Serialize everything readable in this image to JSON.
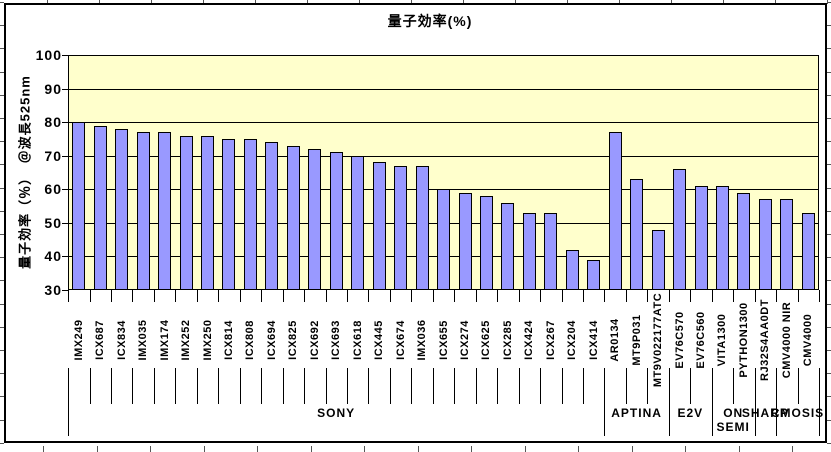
{
  "chart": {
    "colors": {
      "plot_background": "#FFFFCC",
      "bar_fill": "#9999FF",
      "bar_border": "#000000",
      "gridline": "#000000",
      "text": "#000000"
    }
  },
  "chart_data": {
    "type": "bar",
    "title": "量子効率(%)",
    "xlabel": "",
    "ylabel": "量子効率（％）　＠波長525nm",
    "ylim": [
      30,
      100
    ],
    "y_ticks": [
      100,
      90,
      80,
      70,
      60,
      50,
      40,
      30
    ],
    "grid": true,
    "legend": false,
    "categories": [
      "IMX249",
      "ICX687",
      "ICX834",
      "IMX035",
      "IMX174",
      "IMX252",
      "IMX250",
      "ICX814",
      "ICX808",
      "ICX694",
      "ICX825",
      "ICX692",
      "ICX693",
      "ICX618",
      "ICX445",
      "ICX674",
      "IMX036",
      "ICX655",
      "ICX274",
      "ICX625",
      "ICX285",
      "ICX424",
      "ICX267",
      "ICX204",
      "ICX414",
      "AR0134",
      "MT9P031",
      "MT9V022177ATC",
      "EV76C570",
      "EV76C560",
      "VITA1300",
      "PYTHON1300",
      "RJ32S4AA0DT",
      "CMV4000 NIR",
      "CMV4000"
    ],
    "values": [
      80,
      79,
      78,
      77,
      77,
      76,
      76,
      75,
      75,
      74,
      73,
      72,
      71,
      70,
      68,
      67,
      67,
      60,
      59,
      58,
      56,
      53,
      53,
      42,
      39,
      77,
      63,
      48,
      66,
      61,
      61,
      59,
      57,
      57,
      53
    ],
    "groups": [
      {
        "label": "SONY",
        "count": 25
      },
      {
        "label": "APTINA",
        "count": 3
      },
      {
        "label": "E2V",
        "count": 2
      },
      {
        "label": "ON\nSEMI",
        "count": 2
      },
      {
        "label": "SHARP",
        "count": 1
      },
      {
        "label": "CMOSIS",
        "count": 2
      }
    ]
  }
}
